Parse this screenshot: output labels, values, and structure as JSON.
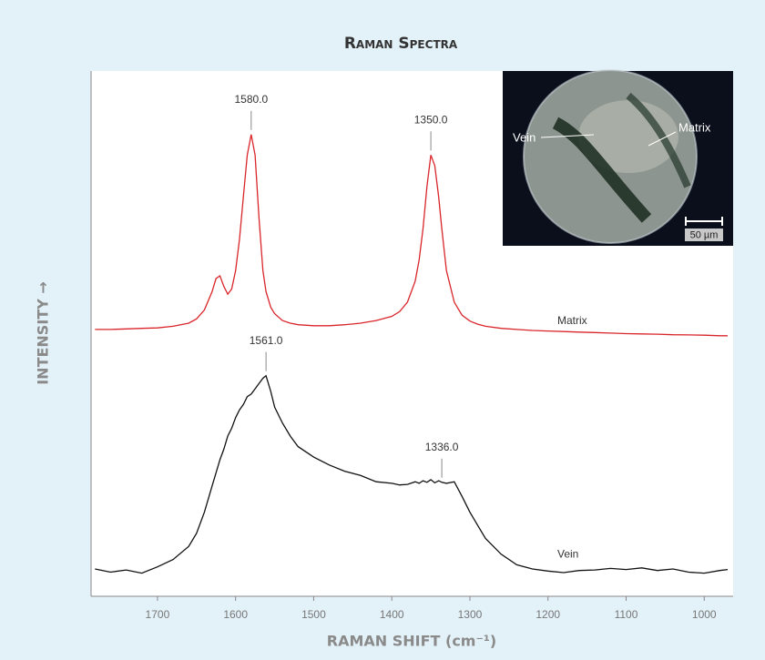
{
  "chart_data": {
    "type": "line",
    "title": "Raman Spectra",
    "xlabel": "RAMAN SHIFT (cm⁻¹)",
    "ylabel": "INTENSITY →",
    "x": [
      1780,
      1760,
      1740,
      1720,
      1700,
      1680,
      1660,
      1650,
      1640,
      1630,
      1625,
      1620,
      1615,
      1610,
      1605,
      1600,
      1595,
      1590,
      1585,
      1580,
      1575,
      1570,
      1565,
      1561,
      1555,
      1550,
      1540,
      1530,
      1520,
      1500,
      1480,
      1460,
      1440,
      1420,
      1400,
      1390,
      1380,
      1370,
      1365,
      1360,
      1355,
      1350,
      1345,
      1340,
      1336,
      1330,
      1320,
      1310,
      1300,
      1290,
      1280,
      1260,
      1240,
      1220,
      1200,
      1180,
      1160,
      1140,
      1120,
      1100,
      1080,
      1060,
      1040,
      1020,
      1000,
      980,
      970
    ],
    "series": [
      {
        "name": "Matrix",
        "color": "#d9252a",
        "values": [
          50.8,
          50.8,
          50.9,
          51.0,
          51.1,
          51.4,
          52.0,
          52.8,
          54.5,
          58,
          60.5,
          61,
          59,
          57.5,
          58.5,
          62,
          68,
          76,
          84,
          87.9,
          84,
          72,
          62,
          58,
          55,
          53.8,
          52.5,
          52,
          51.7,
          51.5,
          51.5,
          51.7,
          52,
          52.5,
          53.3,
          54.2,
          56,
          60,
          64,
          70,
          78,
          84,
          82,
          76,
          70,
          62,
          56,
          53.5,
          52.4,
          51.8,
          51.4,
          51,
          50.8,
          50.6,
          50.5,
          50.4,
          50.3,
          50.2,
          50.1,
          50,
          49.95,
          49.9,
          49.8,
          49.75,
          49.7,
          49.6,
          49.6
        ]
      },
      {
        "name": "Vein",
        "color": "#111111",
        "values": [
          5.2,
          4.6,
          5.0,
          4.4,
          5.6,
          7.0,
          9.5,
          12,
          16,
          21,
          23.5,
          26,
          28,
          30.5,
          32,
          34,
          35.5,
          36.5,
          38,
          38.5,
          39.5,
          40.5,
          41.5,
          42,
          39,
          36,
          33,
          30.5,
          28.5,
          26.5,
          25,
          23.8,
          23,
          21.8,
          21.5,
          21.2,
          21.3,
          21.8,
          21.5,
          22,
          21.7,
          22.2,
          21.6,
          22,
          21.7,
          21.5,
          21.8,
          19,
          16,
          13.5,
          11,
          8,
          6,
          5.2,
          4.8,
          4.5,
          4.9,
          5.0,
          5.3,
          5.1,
          5.4,
          4.9,
          5.2,
          4.6,
          4.4,
          4.9,
          5.1
        ]
      }
    ],
    "annotations": [
      {
        "label": "1580.0",
        "x": 1580,
        "y": 87.9
      },
      {
        "label": "1350.0",
        "x": 1350,
        "y": 84
      },
      {
        "label": "1561.0",
        "x": 1561,
        "y": 42
      },
      {
        "label": "1336.0",
        "x": 1336,
        "y": 21.7
      }
    ],
    "xlim": [
      1785,
      963
    ],
    "ylim": [
      0,
      100
    ],
    "xticks": [
      1700,
      1600,
      1500,
      1400,
      1300,
      1200,
      1100,
      1000
    ]
  },
  "inset": {
    "labels": [
      "Vein",
      "Matrix"
    ],
    "scale_bar": "50 µm"
  }
}
